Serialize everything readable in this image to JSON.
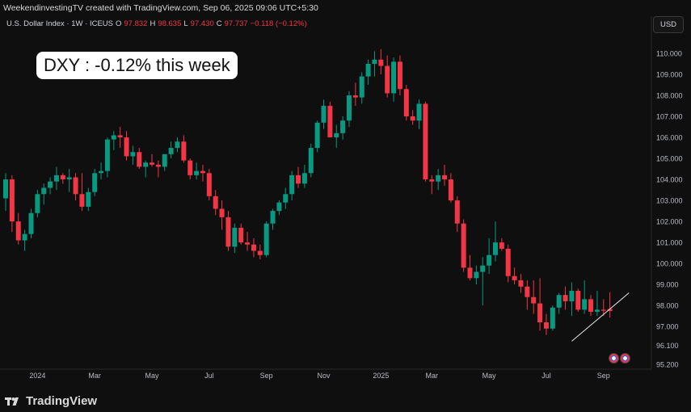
{
  "header": {
    "attribution": "WeekendinvestingTV created with TradingView.com, Sep 06, 2025 09:06 UTC+5:30"
  },
  "legend": {
    "symbol": "U.S. Dollar Index · 1W · ICEUS",
    "o_label": "O",
    "o_value": "97.832",
    "h_label": "H",
    "h_value": "98.635",
    "l_label": "L",
    "l_value": "97.430",
    "c_label": "C",
    "c_value": "97.737",
    "change": "−0.118 (−0.12%)"
  },
  "currency_button": "USD",
  "annotation": "DXY : -0.12% this week",
  "brand": "TradingView",
  "colors": {
    "up": "#089981",
    "down": "#f23645",
    "background": "#0f0f0f",
    "text": "#d1d4dc"
  },
  "chart_data": {
    "type": "candlestick",
    "symbol": "U.S. Dollar Index",
    "interval": "1W",
    "ylim": [
      95.2,
      111.0
    ],
    "y_ticks": [
      "95.200",
      "96.100",
      "97.000",
      "98.000",
      "99.000",
      "100.000",
      "101.000",
      "102.000",
      "103.000",
      "104.000",
      "105.000",
      "106.000",
      "107.000",
      "108.000",
      "109.000",
      "110.000"
    ],
    "x_ticks": [
      {
        "label": "2024",
        "index": 5
      },
      {
        "label": "Mar",
        "index": 14
      },
      {
        "label": "May",
        "index": 23
      },
      {
        "label": "Jul",
        "index": 32
      },
      {
        "label": "Sep",
        "index": 41
      },
      {
        "label": "Nov",
        "index": 50
      },
      {
        "label": "2025",
        "index": 59
      },
      {
        "label": "Mar",
        "index": 67
      },
      {
        "label": "May",
        "index": 76
      },
      {
        "label": "Jul",
        "index": 85
      },
      {
        "label": "Sep",
        "index": 94
      }
    ],
    "candles": [
      {
        "o": 103.1,
        "h": 104.3,
        "l": 102.5,
        "c": 104.0
      },
      {
        "o": 104.0,
        "h": 104.2,
        "l": 101.5,
        "c": 102.0
      },
      {
        "o": 102.0,
        "h": 102.4,
        "l": 100.9,
        "c": 101.1
      },
      {
        "o": 101.1,
        "h": 101.6,
        "l": 100.6,
        "c": 101.4
      },
      {
        "o": 101.4,
        "h": 102.6,
        "l": 101.2,
        "c": 102.4
      },
      {
        "o": 102.4,
        "h": 103.5,
        "l": 102.2,
        "c": 103.3
      },
      {
        "o": 103.3,
        "h": 103.8,
        "l": 102.8,
        "c": 103.6
      },
      {
        "o": 103.6,
        "h": 104.1,
        "l": 103.3,
        "c": 103.9
      },
      {
        "o": 103.9,
        "h": 104.6,
        "l": 103.5,
        "c": 104.2
      },
      {
        "o": 104.2,
        "h": 104.3,
        "l": 103.8,
        "c": 104.0
      },
      {
        "o": 104.0,
        "h": 104.5,
        "l": 103.4,
        "c": 104.1
      },
      {
        "o": 104.1,
        "h": 104.3,
        "l": 103.0,
        "c": 103.3
      },
      {
        "o": 103.3,
        "h": 104.3,
        "l": 102.5,
        "c": 102.7
      },
      {
        "o": 102.7,
        "h": 103.6,
        "l": 102.5,
        "c": 103.4
      },
      {
        "o": 103.4,
        "h": 104.5,
        "l": 103.2,
        "c": 104.3
      },
      {
        "o": 104.3,
        "h": 104.8,
        "l": 104.0,
        "c": 104.4
      },
      {
        "o": 104.4,
        "h": 106.0,
        "l": 104.1,
        "c": 105.9
      },
      {
        "o": 105.9,
        "h": 106.3,
        "l": 105.4,
        "c": 106.1
      },
      {
        "o": 106.1,
        "h": 106.5,
        "l": 105.5,
        "c": 106.0
      },
      {
        "o": 106.0,
        "h": 106.3,
        "l": 104.9,
        "c": 105.1
      },
      {
        "o": 105.1,
        "h": 105.6,
        "l": 104.7,
        "c": 105.3
      },
      {
        "o": 105.3,
        "h": 105.5,
        "l": 104.5,
        "c": 104.6
      },
      {
        "o": 104.6,
        "h": 104.9,
        "l": 104.1,
        "c": 104.8
      },
      {
        "o": 104.8,
        "h": 105.2,
        "l": 104.6,
        "c": 104.7
      },
      {
        "o": 104.7,
        "h": 104.9,
        "l": 104.1,
        "c": 104.6
      },
      {
        "o": 104.6,
        "h": 105.2,
        "l": 104.4,
        "c": 105.2
      },
      {
        "o": 105.2,
        "h": 105.8,
        "l": 105.0,
        "c": 105.5
      },
      {
        "o": 105.5,
        "h": 106.0,
        "l": 105.3,
        "c": 105.8
      },
      {
        "o": 105.8,
        "h": 106.1,
        "l": 104.8,
        "c": 104.9
      },
      {
        "o": 104.9,
        "h": 105.0,
        "l": 104.0,
        "c": 104.2
      },
      {
        "o": 104.2,
        "h": 104.8,
        "l": 104.0,
        "c": 104.4
      },
      {
        "o": 104.4,
        "h": 104.7,
        "l": 103.9,
        "c": 104.3
      },
      {
        "o": 104.3,
        "h": 104.5,
        "l": 103.0,
        "c": 103.2
      },
      {
        "o": 103.2,
        "h": 103.5,
        "l": 102.3,
        "c": 102.6
      },
      {
        "o": 102.6,
        "h": 103.0,
        "l": 101.6,
        "c": 102.2
      },
      {
        "o": 102.2,
        "h": 102.5,
        "l": 100.6,
        "c": 100.8
      },
      {
        "o": 100.8,
        "h": 101.9,
        "l": 100.5,
        "c": 101.7
      },
      {
        "o": 101.7,
        "h": 101.9,
        "l": 100.9,
        "c": 101.0
      },
      {
        "o": 101.0,
        "h": 101.5,
        "l": 100.6,
        "c": 100.9
      },
      {
        "o": 100.9,
        "h": 101.2,
        "l": 100.3,
        "c": 100.6
      },
      {
        "o": 100.6,
        "h": 100.9,
        "l": 100.2,
        "c": 100.4
      },
      {
        "o": 100.4,
        "h": 102.0,
        "l": 100.3,
        "c": 101.9
      },
      {
        "o": 101.9,
        "h": 102.6,
        "l": 101.6,
        "c": 102.5
      },
      {
        "o": 102.5,
        "h": 103.0,
        "l": 102.3,
        "c": 102.9
      },
      {
        "o": 102.9,
        "h": 103.6,
        "l": 102.6,
        "c": 103.3
      },
      {
        "o": 103.3,
        "h": 104.4,
        "l": 103.0,
        "c": 104.2
      },
      {
        "o": 104.2,
        "h": 104.6,
        "l": 103.6,
        "c": 103.8
      },
      {
        "o": 103.8,
        "h": 104.7,
        "l": 103.6,
        "c": 104.3
      },
      {
        "o": 104.3,
        "h": 105.7,
        "l": 104.1,
        "c": 105.5
      },
      {
        "o": 105.5,
        "h": 106.8,
        "l": 105.3,
        "c": 106.7
      },
      {
        "o": 106.7,
        "h": 107.8,
        "l": 106.4,
        "c": 107.5
      },
      {
        "o": 107.5,
        "h": 107.7,
        "l": 106.0,
        "c": 106.0
      },
      {
        "o": 106.0,
        "h": 106.6,
        "l": 105.5,
        "c": 106.2
      },
      {
        "o": 106.2,
        "h": 107.0,
        "l": 105.9,
        "c": 106.8
      },
      {
        "o": 106.8,
        "h": 108.2,
        "l": 106.5,
        "c": 108.0
      },
      {
        "o": 108.0,
        "h": 108.6,
        "l": 107.5,
        "c": 107.9
      },
      {
        "o": 107.9,
        "h": 109.1,
        "l": 107.6,
        "c": 108.9
      },
      {
        "o": 108.9,
        "h": 109.7,
        "l": 108.5,
        "c": 109.5
      },
      {
        "o": 109.5,
        "h": 110.1,
        "l": 108.9,
        "c": 109.7
      },
      {
        "o": 109.7,
        "h": 110.2,
        "l": 109.0,
        "c": 109.4
      },
      {
        "o": 109.4,
        "h": 109.9,
        "l": 107.9,
        "c": 108.1
      },
      {
        "o": 108.1,
        "h": 109.8,
        "l": 107.7,
        "c": 109.6
      },
      {
        "o": 109.6,
        "h": 109.9,
        "l": 108.0,
        "c": 108.3
      },
      {
        "o": 108.3,
        "h": 108.5,
        "l": 106.8,
        "c": 107.0
      },
      {
        "o": 107.0,
        "h": 107.3,
        "l": 106.6,
        "c": 106.8
      },
      {
        "o": 106.8,
        "h": 107.8,
        "l": 106.4,
        "c": 107.6
      },
      {
        "o": 107.6,
        "h": 107.7,
        "l": 103.9,
        "c": 104.0
      },
      {
        "o": 104.0,
        "h": 104.2,
        "l": 103.3,
        "c": 103.9
      },
      {
        "o": 103.9,
        "h": 104.5,
        "l": 103.5,
        "c": 104.2
      },
      {
        "o": 104.2,
        "h": 104.7,
        "l": 103.7,
        "c": 104.0
      },
      {
        "o": 104.0,
        "h": 104.3,
        "l": 102.9,
        "c": 103.0
      },
      {
        "o": 103.0,
        "h": 103.2,
        "l": 101.5,
        "c": 101.9
      },
      {
        "o": 101.9,
        "h": 102.1,
        "l": 99.6,
        "c": 99.8
      },
      {
        "o": 99.8,
        "h": 100.4,
        "l": 99.2,
        "c": 99.3
      },
      {
        "o": 99.3,
        "h": 99.9,
        "l": 99.0,
        "c": 99.6
      },
      {
        "o": 99.6,
        "h": 100.3,
        "l": 98.0,
        "c": 99.9
      },
      {
        "o": 99.9,
        "h": 101.2,
        "l": 99.5,
        "c": 100.4
      },
      {
        "o": 100.4,
        "h": 102.0,
        "l": 100.1,
        "c": 101.0
      },
      {
        "o": 101.0,
        "h": 101.2,
        "l": 100.6,
        "c": 100.7
      },
      {
        "o": 100.7,
        "h": 100.9,
        "l": 99.1,
        "c": 99.4
      },
      {
        "o": 99.4,
        "h": 99.8,
        "l": 99.0,
        "c": 99.2
      },
      {
        "o": 99.2,
        "h": 99.5,
        "l": 98.6,
        "c": 98.9
      },
      {
        "o": 98.9,
        "h": 99.2,
        "l": 97.8,
        "c": 98.4
      },
      {
        "o": 98.4,
        "h": 99.2,
        "l": 97.6,
        "c": 98.1
      },
      {
        "o": 98.1,
        "h": 99.3,
        "l": 96.8,
        "c": 97.2
      },
      {
        "o": 97.2,
        "h": 97.6,
        "l": 96.6,
        "c": 96.9
      },
      {
        "o": 96.9,
        "h": 98.0,
        "l": 96.8,
        "c": 97.9
      },
      {
        "o": 97.9,
        "h": 98.6,
        "l": 97.6,
        "c": 98.5
      },
      {
        "o": 98.5,
        "h": 98.9,
        "l": 97.8,
        "c": 98.2
      },
      {
        "o": 98.2,
        "h": 99.1,
        "l": 97.5,
        "c": 98.7
      },
      {
        "o": 98.7,
        "h": 98.8,
        "l": 97.7,
        "c": 97.8
      },
      {
        "o": 97.8,
        "h": 99.2,
        "l": 97.6,
        "c": 98.3
      },
      {
        "o": 98.3,
        "h": 98.5,
        "l": 97.5,
        "c": 97.7
      },
      {
        "o": 97.7,
        "h": 98.7,
        "l": 97.5,
        "c": 97.8
      },
      {
        "o": 97.8,
        "h": 98.3,
        "l": 97.5,
        "c": 97.75
      },
      {
        "o": 97.832,
        "h": 98.635,
        "l": 97.43,
        "c": 97.737
      }
    ],
    "trendline": {
      "start": {
        "index": 89,
        "value": 96.3
      },
      "end": {
        "index": 98,
        "value": 98.6
      }
    }
  }
}
